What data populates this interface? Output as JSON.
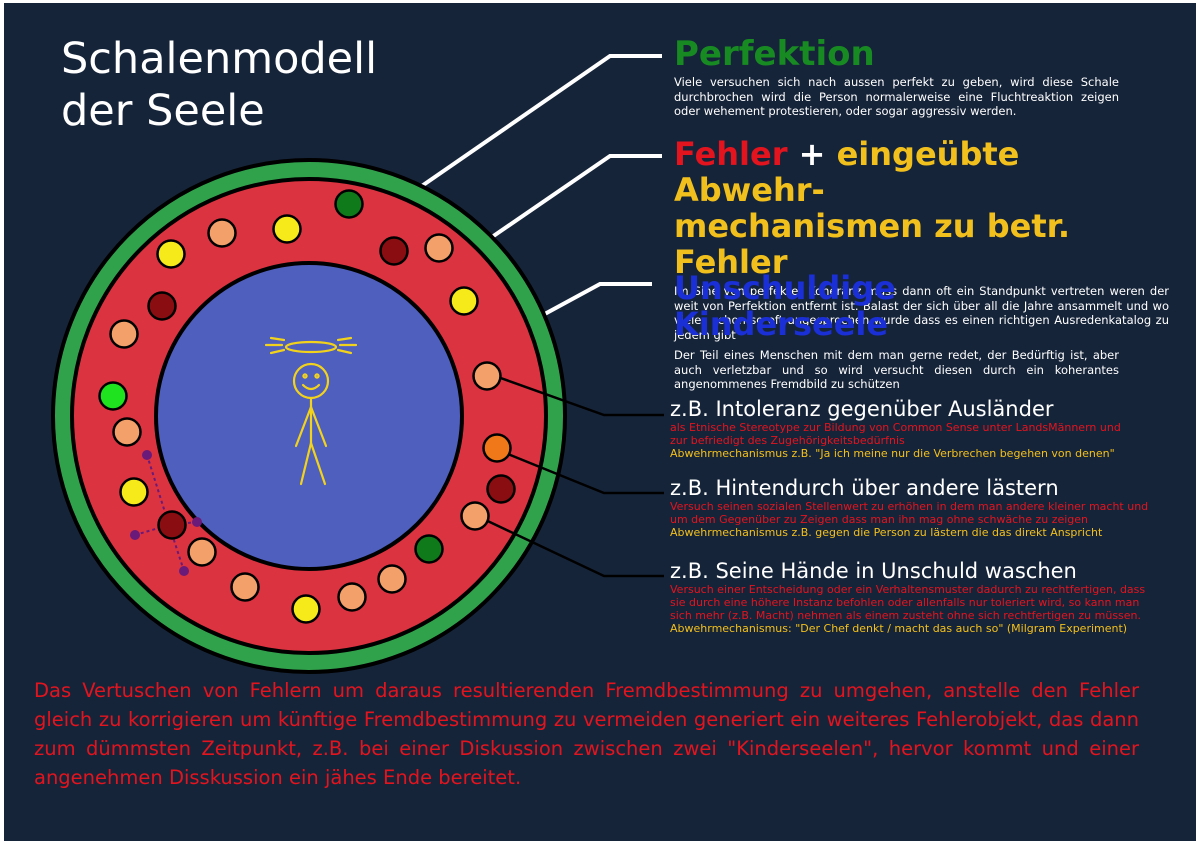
{
  "title": {
    "line1": "Schalenmodell",
    "line2": "der Seele"
  },
  "layers": [
    {
      "id": "perfektion",
      "heading": "Perfektion",
      "color": "#188a22",
      "text": "Viele versuchen sich nach aussen perfekt zu geben, wird diese Schale durchbrochen wird die Person normalerweise eine Fluchtreaktion zeigen oder wehement protestieren, oder sogar aggressiv werden."
    },
    {
      "id": "fehler",
      "heading_part1": "Fehler",
      "heading_plus": " + ",
      "heading_part2": "eingeübte Abwehr-",
      "heading_line2": "mechanismen zu betr. Fehler",
      "color_red": "#e3141e",
      "color_yellow": "#f2c01c",
      "text": "Im Sine von perfekter Koheränz muss dann oft ein Standpunkt vertreten weren der weit von Perfektion entfernt ist. Balast der sich über all die Jahre ansammelt und wo vieles schon so oft angesprochen wurde dass es einen richtigen Ausredenkatalog zu jedem gibt"
    },
    {
      "id": "kinderseele",
      "heading": "Unschuldige Kinderseele",
      "color": "#1a2fd6",
      "text": "Der Teil eines Menschen mit dem man gerne redet, der Bedürftig ist, aber auch verletzbar und so wird versucht diesen durch ein koherantes angenommenes Fremdbild zu schützen"
    }
  ],
  "examples": [
    {
      "title": "z.B. Intoleranz gegenüber Ausländer",
      "description": "als Etnische Stereotype zur Bildung von Common Sense unter LandsMännern und zur befriedigt des Zugehörigkeitsbedürfnis",
      "mechanism": "Abwehrmechanismus z.B. \"Ja ich meine nur die Verbrechen begehen von denen\""
    },
    {
      "title": "z.B. Hintendurch über andere lästern",
      "description": "Versuch seinen sozialen Stellenwert zu erhöhen in dem man andere kleiner macht und um dem Gegenüber zu Zeigen dass man ihn mag ohne schwäche zu zeigen",
      "mechanism": "Abwehrmechanismus z.B. gegen die Person zu lästern die das direkt Anspricht"
    },
    {
      "title": "z.B. Seine Hände in Unschuld waschen",
      "description": "Versuch einer Entscheidung oder ein Verhaltensmuster dadurch zu rechtfertigen, dass sie durch eine höhere Instanz befohlen oder allenfalls nur toleriert wird, so kann man sich mehr (z.B. Macht) nehmen als einem zusteht ohne sich rechtfertigen zu müssen.",
      "mechanism": "Abwehrmechanismus: \"Der Chef denkt / macht das auch so\" (Milgram Experiment)"
    }
  ],
  "footer": "Das Vertuschen von Fehlern um daraus resultierenden Fremdbestimmung zu umgehen, anstelle den Fehler gleich zu korrigieren um künftige Fremdbestimmung zu vermeiden generiert ein weiteres Fehlerobjekt, das dann zum dümmsten Zeitpunkt, z.B. bei einer Diskussion zwischen zwei \"Kinderseelen\", hervor kommt und einer angenehmen Disskussion ein jähes Ende bereitet.",
  "colors": {
    "background": "#16243a",
    "outer_ring": "#31a24c",
    "middle_ring": "#dc3340",
    "inner_core": "#4f5fbd",
    "figure": "#f2d21b",
    "connector": "#6a1a78",
    "dot_green_dark": "#0f7a1a",
    "dot_green_light": "#1ee31e",
    "dot_yellow": "#f7ea1a",
    "dot_orange_light": "#f4a06a",
    "dot_orange": "#f07818",
    "dot_darkred": "#8a0d12"
  },
  "dot_color_sequence": [
    "green_dark",
    "darkred",
    "orange_light",
    "yellow",
    "orange_light",
    "yellow",
    "yellow",
    "darkred",
    "orange_light",
    "orange_light",
    "yellow",
    "green_light",
    "orange_light",
    "orange_light",
    "orange",
    "darkred",
    "yellow",
    "darkred",
    "orange_light",
    "orange_light",
    "green_dark",
    "orange_light",
    "orange_light",
    "orange_light",
    "yellow",
    "yellow"
  ]
}
